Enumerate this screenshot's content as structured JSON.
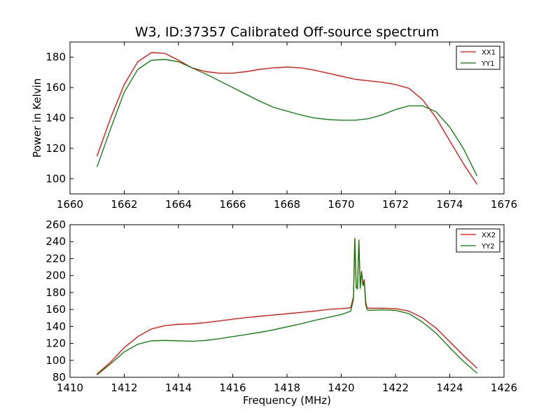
{
  "figure": {
    "title": "W3, ID:37357 Calibrated Off-source spectrum",
    "xlabel": "Frequency (MHz)"
  },
  "chart_data": [
    {
      "type": "line",
      "title": "W3, ID:37357 Calibrated Off-source spectrum",
      "xlabel": "",
      "ylabel": "Power in Kelvin",
      "xlim": [
        1660,
        1676
      ],
      "ylim": [
        90,
        190
      ],
      "xticks": [
        1660,
        1662,
        1664,
        1666,
        1668,
        1670,
        1672,
        1674,
        1676
      ],
      "yticks": [
        100,
        120,
        140,
        160,
        180
      ],
      "legend_position": "top-right",
      "series": [
        {
          "name": "XX1",
          "color": "#ff0000",
          "x": [
            1661,
            1661.5,
            1662,
            1662.5,
            1663,
            1663.5,
            1664,
            1664.5,
            1665,
            1665.5,
            1666,
            1666.5,
            1667,
            1667.5,
            1668,
            1668.5,
            1669,
            1669.5,
            1670,
            1670.5,
            1671,
            1671.5,
            1672,
            1672.5,
            1673,
            1673.5,
            1674,
            1674.5,
            1675
          ],
          "y": [
            115,
            140,
            162,
            177,
            183,
            182.5,
            178,
            173,
            170.5,
            169.5,
            169.5,
            170.5,
            172,
            173,
            173.5,
            173,
            171.5,
            169.5,
            167.5,
            165.5,
            164.5,
            163.5,
            162,
            159.5,
            152,
            140,
            125,
            110,
            96.5
          ]
        },
        {
          "name": "YY1",
          "color": "#008000",
          "x": [
            1661,
            1661.5,
            1662,
            1662.5,
            1663,
            1663.5,
            1664,
            1664.5,
            1665,
            1665.5,
            1666,
            1666.5,
            1667,
            1667.5,
            1668,
            1668.5,
            1669,
            1669.5,
            1670,
            1670.5,
            1671,
            1671.5,
            1672,
            1672.5,
            1673,
            1673.5,
            1674,
            1674.5,
            1675
          ],
          "y": [
            108,
            133,
            157,
            172,
            178,
            178.5,
            177,
            173,
            169,
            164.5,
            160,
            155.5,
            151,
            147,
            144.5,
            142,
            140,
            139,
            138.5,
            138.5,
            139.5,
            142,
            145.5,
            148,
            148,
            144,
            134,
            120,
            102
          ]
        }
      ]
    },
    {
      "type": "line",
      "title": "",
      "xlabel": "Frequency (MHz)",
      "ylabel": "",
      "xlim": [
        1410,
        1426
      ],
      "ylim": [
        80,
        260
      ],
      "xticks": [
        1410,
        1412,
        1414,
        1416,
        1418,
        1420,
        1422,
        1424,
        1426
      ],
      "yticks": [
        80,
        100,
        120,
        140,
        160,
        180,
        200,
        220,
        240,
        260
      ],
      "legend_position": "top-right",
      "series": [
        {
          "name": "XX2",
          "color": "#ff0000",
          "x": [
            1411,
            1411.5,
            1412,
            1412.5,
            1413,
            1413.5,
            1414,
            1414.5,
            1415,
            1415.5,
            1416,
            1416.5,
            1417,
            1417.5,
            1418,
            1418.5,
            1419,
            1419.5,
            1420,
            1420.35,
            1420.45,
            1420.5,
            1420.55,
            1420.6,
            1420.65,
            1420.7,
            1420.75,
            1420.8,
            1420.85,
            1420.9,
            1420.95,
            1421,
            1421.5,
            1422,
            1422.5,
            1423,
            1423.5,
            1424,
            1424.5,
            1425
          ],
          "y": [
            84,
            98,
            115,
            128,
            137,
            141,
            142.5,
            143,
            144.5,
            146.5,
            148.5,
            150.5,
            152,
            153.5,
            155,
            156.5,
            158,
            160,
            161,
            162,
            175,
            244,
            188,
            186,
            242,
            187,
            205,
            190,
            195,
            170,
            162,
            161.5,
            161.5,
            161,
            158,
            150,
            138,
            122,
            106,
            91
          ]
        },
        {
          "name": "YY2",
          "color": "#008000",
          "x": [
            1411,
            1411.5,
            1412,
            1412.5,
            1413,
            1413.5,
            1414,
            1414.5,
            1415,
            1415.5,
            1416,
            1416.5,
            1417,
            1417.5,
            1418,
            1418.5,
            1419,
            1419.5,
            1420,
            1420.35,
            1420.45,
            1420.5,
            1420.55,
            1420.6,
            1420.65,
            1420.7,
            1420.75,
            1420.8,
            1420.85,
            1420.9,
            1420.95,
            1421,
            1421.5,
            1422,
            1422.5,
            1423,
            1423.5,
            1424,
            1424.5,
            1425
          ],
          "y": [
            83,
            96,
            110,
            119,
            123,
            123.5,
            123,
            122.5,
            123.5,
            125.5,
            128,
            130.5,
            133,
            136,
            139.5,
            143,
            147,
            150.5,
            154,
            158,
            172,
            243,
            186,
            184,
            241,
            185,
            204,
            188,
            192,
            166,
            160,
            159,
            159.5,
            159,
            155,
            145,
            132,
            115,
            99,
            85
          ]
        }
      ]
    }
  ]
}
